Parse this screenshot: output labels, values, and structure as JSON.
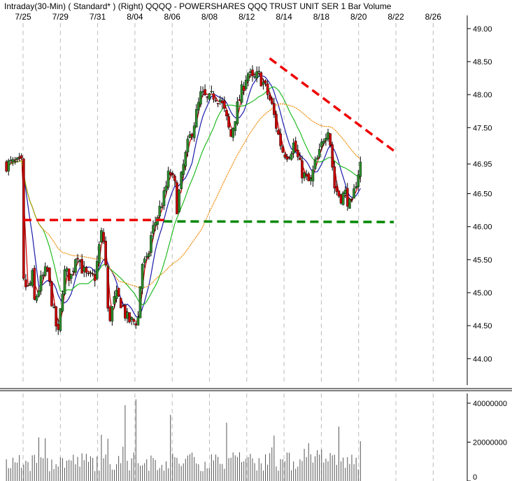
{
  "header": {
    "title": "Intraday(30-Min) ( Standard* )   (Right)   QQQQ - POWERSHARES QQQ TRUST UNIT SER 1   Bar   Volume"
  },
  "colors": {
    "up_candle": "#2a8a2a",
    "down_candle": "#cc0000",
    "ma_fast": "#cc0000",
    "ma_medium": "#1a1aaa",
    "ma_slow": "#22bb22",
    "ma_long": "#ee8800",
    "resistance": "#ee0000",
    "support": "#008800",
    "grid": "#bbbbbb",
    "volume_bar": "#555555"
  },
  "chart_data": {
    "type": "candlestick",
    "x_labels": [
      "7/25",
      "7/29",
      "7/31",
      "8/04",
      "8/06",
      "8/08",
      "8/12",
      "8/14",
      "8/18",
      "8/20",
      "8/22",
      "8/26"
    ],
    "price_axis": {
      "ylim": [
        43.6,
        49.2
      ],
      "ticks": [
        "49.00",
        "48.50",
        "48.00",
        "47.50",
        "46.95",
        "46.50",
        "46.00",
        "45.50",
        "45.00",
        "44.50",
        "44.00"
      ],
      "current_price": 46.95
    },
    "price_path": [
      [
        0,
        45.15
      ],
      [
        0.03,
        45.05
      ],
      [
        0.05,
        45.25
      ],
      [
        0.06,
        44.85
      ],
      [
        0.1,
        45.2
      ],
      [
        0.13,
        45.35
      ],
      [
        0.17,
        44.6
      ],
      [
        0.19,
        44.35
      ],
      [
        0.22,
        45.3
      ],
      [
        0.26,
        45.25
      ],
      [
        0.29,
        45.65
      ],
      [
        0.32,
        45.35
      ],
      [
        0.35,
        45.2
      ],
      [
        0.39,
        45.25
      ],
      [
        0.42,
        45.9
      ],
      [
        0.44,
        45.75
      ],
      [
        0.46,
        44.55
      ],
      [
        0.5,
        44.95
      ],
      [
        0.53,
        44.85
      ],
      [
        0.56,
        44.6
      ],
      [
        0.59,
        44.55
      ],
      [
        0.62,
        44.6
      ],
      [
        0.64,
        45.45
      ],
      [
        0.67,
        45.45
      ],
      [
        0.69,
        45.85
      ],
      [
        0.71,
        46.05
      ],
      [
        0.76,
        46.45
      ],
      [
        0.79,
        46.85
      ],
      [
        0.82,
        46.6
      ],
      [
        0.83,
        46.3
      ],
      [
        0.86,
        46.85
      ],
      [
        0.89,
        47.25
      ],
      [
        0.93,
        47.65
      ],
      [
        0.96,
        48.0
      ],
      [
        1.0,
        47.9
      ],
      [
        1.03,
        48.0
      ],
      [
        1.06,
        47.95
      ],
      [
        1.09,
        47.7
      ],
      [
        1.12,
        47.35
      ],
      [
        1.15,
        47.75
      ],
      [
        1.18,
        48.05
      ],
      [
        1.21,
        48.35
      ],
      [
        1.24,
        48.2
      ],
      [
        1.27,
        48.3
      ],
      [
        1.3,
        48.15
      ],
      [
        1.34,
        47.85
      ],
      [
        1.36,
        47.6
      ],
      [
        1.38,
        47.35
      ],
      [
        1.4,
        47.15
      ],
      [
        1.43,
        47.1
      ],
      [
        1.46,
        47.25
      ],
      [
        1.49,
        46.95
      ],
      [
        1.5,
        46.85
      ],
      [
        1.53,
        46.7
      ],
      [
        1.55,
        46.65
      ],
      [
        1.57,
        46.9
      ],
      [
        1.6,
        47.1
      ],
      [
        1.62,
        47.35
      ],
      [
        1.65,
        47.55
      ],
      [
        1.66,
        47.15
      ],
      [
        1.68,
        46.6
      ],
      [
        1.71,
        46.45
      ],
      [
        1.74,
        46.5
      ],
      [
        1.77,
        46.25
      ],
      [
        1.8,
        46.75
      ],
      [
        1.82,
        46.95
      ]
    ],
    "lines": [
      {
        "name": "resistance",
        "color": "#ee0000",
        "points": [
          [
            0,
            46.1
          ],
          [
            0.76,
            46.1
          ]
        ]
      },
      {
        "name": "resistance",
        "color": "#ee0000",
        "points": [
          [
            1.33,
            48.55
          ],
          [
            2.0,
            47.15
          ]
        ]
      },
      {
        "name": "support",
        "color": "#008800",
        "points": [
          [
            0.76,
            46.08
          ],
          [
            2.0,
            46.07
          ]
        ]
      }
    ],
    "volume_axis": {
      "ylim": [
        0,
        45000000
      ],
      "ticks": [
        "40000000",
        "20000000",
        "0"
      ]
    },
    "volume_peaks": [
      [
        0.12,
        22000000
      ],
      [
        0.55,
        39000000
      ],
      [
        0.61,
        42000000
      ],
      [
        0.8,
        34000000
      ],
      [
        1.1,
        30000000
      ],
      [
        1.7,
        28000000
      ]
    ]
  }
}
